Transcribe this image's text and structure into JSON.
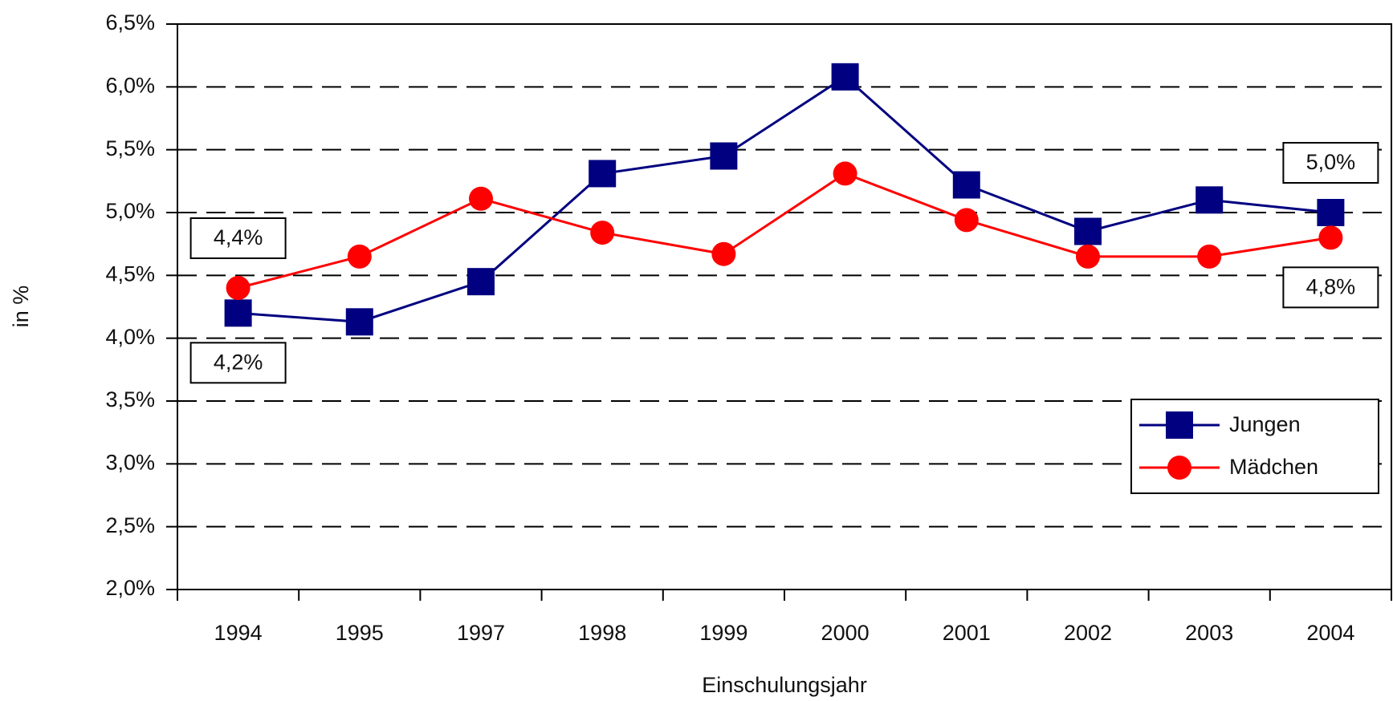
{
  "chart_data": {
    "type": "line",
    "y_label": "in %",
    "x_label": "Einschulungsjahr",
    "categories": [
      "1994",
      "1995",
      "1997",
      "1998",
      "1999",
      "2000",
      "2001",
      "2002",
      "2003",
      "2004"
    ],
    "series": [
      {
        "name": "Jungen",
        "color": "#000080",
        "marker": "square",
        "values": [
          4.2,
          4.13,
          4.45,
          5.31,
          5.45,
          6.08,
          5.22,
          4.85,
          5.1,
          5.0
        ],
        "value_labels": [
          "4,2%",
          null,
          null,
          null,
          null,
          null,
          null,
          null,
          null,
          "5,0%"
        ]
      },
      {
        "name": "Mädchen",
        "color": "#ff0000",
        "marker": "circle",
        "values": [
          4.4,
          4.65,
          5.11,
          4.84,
          4.67,
          5.31,
          4.94,
          4.65,
          4.65,
          4.8
        ],
        "value_labels": [
          "4,4%",
          null,
          null,
          null,
          null,
          null,
          null,
          null,
          null,
          "4,8%"
        ]
      }
    ],
    "ylim": [
      2.0,
      6.5
    ],
    "yticks": [
      {
        "value": 2.0,
        "label": "2,0%"
      },
      {
        "value": 2.5,
        "label": "2,5%"
      },
      {
        "value": 3.0,
        "label": "3,0%"
      },
      {
        "value": 3.5,
        "label": "3,5%"
      },
      {
        "value": 4.0,
        "label": "4,0%"
      },
      {
        "value": 4.5,
        "label": "4,5%"
      },
      {
        "value": 5.0,
        "label": "5,0%"
      },
      {
        "value": 5.5,
        "label": "5,5%"
      },
      {
        "value": 6.0,
        "label": "6,0%"
      },
      {
        "value": 6.5,
        "label": "6,5%"
      }
    ],
    "grid": true,
    "legend": "lower right"
  }
}
